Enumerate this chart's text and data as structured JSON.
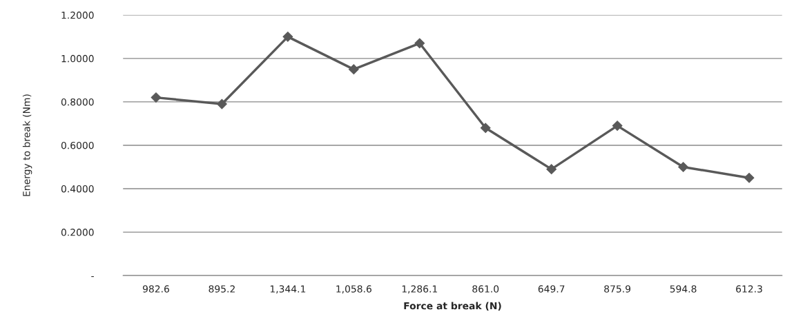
{
  "chart_data": {
    "type": "line",
    "xlabel": "Force at break (N)",
    "ylabel": "Energy to break (Nm)",
    "categories": [
      "982.6",
      "895.2",
      "1,344.1",
      "1,058.6",
      "1,286.1",
      "861.0",
      "649.7",
      "875.9",
      "594.8",
      "612.3"
    ],
    "series": [
      {
        "color": "#595959",
        "values": [
          0.82,
          0.79,
          1.1,
          0.95,
          1.07,
          0.68,
          0.49,
          0.69,
          0.5,
          0.45
        ]
      }
    ],
    "ylim": [
      0,
      1.2
    ],
    "yticks": [
      {
        "value": 0,
        "label": "-"
      },
      {
        "value": 0.2,
        "label": "0.2000"
      },
      {
        "value": 0.4,
        "label": "0.4000"
      },
      {
        "value": 0.6,
        "label": "0.6000"
      },
      {
        "value": 0.8,
        "label": "0.8000"
      },
      {
        "value": 1.0,
        "label": "1.0000"
      },
      {
        "value": 1.2,
        "label": "1.2000"
      }
    ],
    "grid": "y",
    "marker": "diamond",
    "line_style": "solid"
  }
}
